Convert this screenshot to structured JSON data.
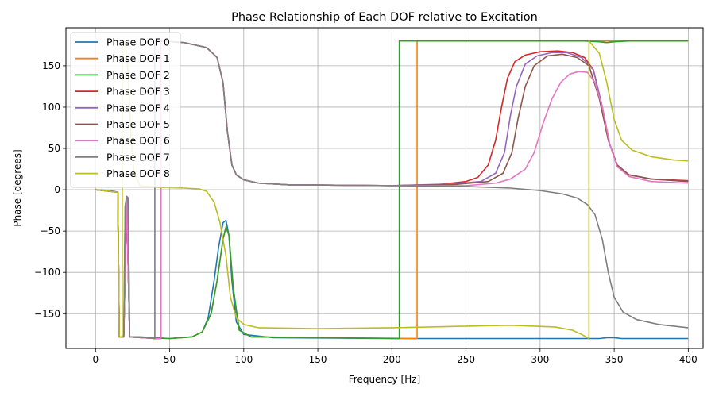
{
  "chart_data": {
    "type": "line",
    "title": "Phase Relationship of Each DOF relative to Excitation",
    "xlabel": "Frequency [Hz]",
    "ylabel": "Phase [degrees]",
    "xlim": [
      -20,
      410
    ],
    "ylim": [
      -192,
      196
    ],
    "xticks": [
      0,
      50,
      100,
      150,
      200,
      250,
      300,
      350,
      400
    ],
    "yticks": [
      -150,
      -100,
      -50,
      0,
      50,
      100,
      150
    ],
    "xtick_labels": [
      "0",
      "50",
      "100",
      "150",
      "200",
      "250",
      "300",
      "350",
      "400"
    ],
    "ytick_labels": [
      "−150",
      "−100",
      "−50",
      "0",
      "50",
      "100",
      "150"
    ],
    "grid": true,
    "legend_position": "top-left",
    "series": [
      {
        "name": "Phase DOF 0",
        "color": "#1f77b4",
        "points": [
          [
            0,
            0
          ],
          [
            10,
            -1
          ],
          [
            15,
            -3
          ],
          [
            16,
            -178
          ],
          [
            19,
            -178
          ],
          [
            20,
            -20
          ],
          [
            21,
            -8
          ],
          [
            22,
            -10
          ],
          [
            23,
            -178
          ],
          [
            30,
            -178
          ],
          [
            50,
            -180
          ],
          [
            65,
            -178
          ],
          [
            72,
            -172
          ],
          [
            76,
            -155
          ],
          [
            80,
            -110
          ],
          [
            83,
            -70
          ],
          [
            86,
            -40
          ],
          [
            88,
            -37
          ],
          [
            90,
            -55
          ],
          [
            92,
            -110
          ],
          [
            95,
            -160
          ],
          [
            100,
            -175
          ],
          [
            120,
            -179
          ],
          [
            200,
            -180
          ],
          [
            340,
            -180
          ],
          [
            345,
            -179
          ],
          [
            350,
            -179
          ],
          [
            355,
            -180
          ],
          [
            400,
            -180
          ]
        ]
      },
      {
        "name": "Phase DOF 1",
        "color": "#ff7f0e",
        "points": [
          [
            0,
            0
          ],
          [
            15,
            -3
          ],
          [
            16,
            -178
          ],
          [
            19,
            -178
          ],
          [
            21,
            -10
          ],
          [
            23,
            -178
          ],
          [
            50,
            -180
          ],
          [
            65,
            -178
          ],
          [
            72,
            -172
          ],
          [
            78,
            -150
          ],
          [
            82,
            -110
          ],
          [
            86,
            -60
          ],
          [
            88,
            -45
          ],
          [
            90,
            -55
          ],
          [
            93,
            -120
          ],
          [
            97,
            -170
          ],
          [
            105,
            -178
          ],
          [
            217,
            -180
          ],
          [
            217,
            180
          ],
          [
            400,
            180
          ]
        ]
      },
      {
        "name": "Phase DOF 2",
        "color": "#2ca02c",
        "points": [
          [
            0,
            0
          ],
          [
            15,
            -3
          ],
          [
            16,
            -178
          ],
          [
            19,
            -178
          ],
          [
            21,
            -10
          ],
          [
            23,
            -178
          ],
          [
            50,
            -180
          ],
          [
            65,
            -178
          ],
          [
            72,
            -172
          ],
          [
            78,
            -150
          ],
          [
            82,
            -110
          ],
          [
            86,
            -60
          ],
          [
            88,
            -45
          ],
          [
            90,
            -55
          ],
          [
            93,
            -120
          ],
          [
            97,
            -170
          ],
          [
            105,
            -178
          ],
          [
            205,
            -180
          ],
          [
            205,
            180
          ],
          [
            330,
            180
          ],
          [
            340,
            179
          ],
          [
            345,
            178
          ],
          [
            350,
            179
          ],
          [
            360,
            180
          ],
          [
            400,
            180
          ]
        ]
      },
      {
        "name": "Phase DOF 3",
        "color": "#d62728",
        "points": [
          [
            0,
            0
          ],
          [
            15,
            -3
          ],
          [
            16,
            -178
          ],
          [
            19,
            -178
          ],
          [
            21,
            -10
          ],
          [
            23,
            -178
          ],
          [
            40,
            -180
          ],
          [
            44,
            -180
          ],
          [
            44,
            180
          ],
          [
            60,
            178
          ],
          [
            75,
            172
          ],
          [
            82,
            160
          ],
          [
            86,
            130
          ],
          [
            89,
            70
          ],
          [
            92,
            30
          ],
          [
            95,
            18
          ],
          [
            100,
            12
          ],
          [
            110,
            8
          ],
          [
            130,
            6
          ],
          [
            200,
            5
          ],
          [
            230,
            6
          ],
          [
            250,
            10
          ],
          [
            258,
            15
          ],
          [
            265,
            30
          ],
          [
            270,
            60
          ],
          [
            274,
            100
          ],
          [
            278,
            135
          ],
          [
            283,
            155
          ],
          [
            290,
            163
          ],
          [
            300,
            167
          ],
          [
            312,
            168
          ],
          [
            322,
            166
          ],
          [
            330,
            160
          ],
          [
            336,
            145
          ],
          [
            342,
            100
          ],
          [
            347,
            55
          ],
          [
            352,
            30
          ],
          [
            360,
            18
          ],
          [
            375,
            13
          ],
          [
            400,
            11
          ]
        ]
      },
      {
        "name": "Phase DOF 4",
        "color": "#9467bd",
        "points": [
          [
            0,
            0
          ],
          [
            15,
            -3
          ],
          [
            16,
            -178
          ],
          [
            19,
            -178
          ],
          [
            21,
            -10
          ],
          [
            23,
            -178
          ],
          [
            40,
            -180
          ],
          [
            44,
            -180
          ],
          [
            44,
            180
          ],
          [
            60,
            178
          ],
          [
            75,
            172
          ],
          [
            82,
            160
          ],
          [
            86,
            130
          ],
          [
            89,
            70
          ],
          [
            92,
            30
          ],
          [
            95,
            18
          ],
          [
            100,
            12
          ],
          [
            110,
            8
          ],
          [
            130,
            6
          ],
          [
            200,
            5
          ],
          [
            240,
            7
          ],
          [
            260,
            10
          ],
          [
            270,
            20
          ],
          [
            276,
            45
          ],
          [
            280,
            90
          ],
          [
            284,
            125
          ],
          [
            290,
            152
          ],
          [
            298,
            162
          ],
          [
            308,
            166
          ],
          [
            318,
            166
          ],
          [
            328,
            160
          ],
          [
            336,
            145
          ],
          [
            342,
            100
          ],
          [
            347,
            55
          ],
          [
            352,
            30
          ],
          [
            360,
            18
          ],
          [
            375,
            13
          ],
          [
            400,
            10
          ]
        ]
      },
      {
        "name": "Phase DOF 5",
        "color": "#8c564b",
        "points": [
          [
            0,
            0
          ],
          [
            15,
            -3
          ],
          [
            16,
            -178
          ],
          [
            19,
            -178
          ],
          [
            21,
            -10
          ],
          [
            23,
            -178
          ],
          [
            40,
            -180
          ],
          [
            44,
            -180
          ],
          [
            44,
            180
          ],
          [
            60,
            178
          ],
          [
            75,
            172
          ],
          [
            82,
            160
          ],
          [
            86,
            130
          ],
          [
            89,
            70
          ],
          [
            92,
            30
          ],
          [
            95,
            18
          ],
          [
            100,
            12
          ],
          [
            110,
            8
          ],
          [
            130,
            6
          ],
          [
            200,
            5
          ],
          [
            240,
            6
          ],
          [
            265,
            10
          ],
          [
            275,
            20
          ],
          [
            281,
            45
          ],
          [
            285,
            85
          ],
          [
            290,
            125
          ],
          [
            296,
            150
          ],
          [
            305,
            162
          ],
          [
            315,
            164
          ],
          [
            325,
            160
          ],
          [
            333,
            150
          ],
          [
            340,
            110
          ],
          [
            346,
            60
          ],
          [
            352,
            30
          ],
          [
            360,
            18
          ],
          [
            375,
            13
          ],
          [
            400,
            10
          ]
        ]
      },
      {
        "name": "Phase DOF 6",
        "color": "#e377c2",
        "points": [
          [
            0,
            0
          ],
          [
            15,
            -3
          ],
          [
            16,
            -178
          ],
          [
            19,
            -178
          ],
          [
            21,
            -10
          ],
          [
            23,
            -178
          ],
          [
            40,
            -180
          ],
          [
            44,
            -180
          ],
          [
            44,
            180
          ],
          [
            60,
            178
          ],
          [
            75,
            172
          ],
          [
            82,
            160
          ],
          [
            86,
            130
          ],
          [
            89,
            70
          ],
          [
            92,
            30
          ],
          [
            95,
            18
          ],
          [
            100,
            12
          ],
          [
            110,
            8
          ],
          [
            130,
            6
          ],
          [
            200,
            5
          ],
          [
            250,
            5
          ],
          [
            270,
            8
          ],
          [
            280,
            13
          ],
          [
            290,
            25
          ],
          [
            296,
            45
          ],
          [
            302,
            80
          ],
          [
            308,
            110
          ],
          [
            314,
            130
          ],
          [
            320,
            140
          ],
          [
            326,
            143
          ],
          [
            332,
            142
          ],
          [
            337,
            130
          ],
          [
            342,
            100
          ],
          [
            347,
            55
          ],
          [
            352,
            28
          ],
          [
            360,
            16
          ],
          [
            375,
            10
          ],
          [
            400,
            8
          ]
        ]
      },
      {
        "name": "Phase DOF 7",
        "color": "#7f7f7f",
        "points": [
          [
            0,
            0
          ],
          [
            15,
            -3
          ],
          [
            16,
            -178
          ],
          [
            19,
            -178
          ],
          [
            20,
            -20
          ],
          [
            21,
            -8
          ],
          [
            22,
            -10
          ],
          [
            23,
            -178
          ],
          [
            35,
            -179
          ],
          [
            40,
            -180
          ],
          [
            40,
            180
          ],
          [
            60,
            178
          ],
          [
            75,
            172
          ],
          [
            82,
            160
          ],
          [
            86,
            130
          ],
          [
            89,
            70
          ],
          [
            92,
            30
          ],
          [
            95,
            18
          ],
          [
            100,
            12
          ],
          [
            110,
            8
          ],
          [
            130,
            6
          ],
          [
            200,
            5
          ],
          [
            250,
            4
          ],
          [
            280,
            2
          ],
          [
            300,
            -1
          ],
          [
            315,
            -5
          ],
          [
            325,
            -10
          ],
          [
            332,
            -18
          ],
          [
            337,
            -30
          ],
          [
            342,
            -60
          ],
          [
            346,
            -100
          ],
          [
            350,
            -130
          ],
          [
            356,
            -148
          ],
          [
            365,
            -157
          ],
          [
            380,
            -163
          ],
          [
            400,
            -167
          ]
        ]
      },
      {
        "name": "Phase DOF 8",
        "color": "#bcbd22",
        "points": [
          [
            0,
            0
          ],
          [
            15,
            -3
          ],
          [
            16,
            -178
          ],
          [
            18,
            -178
          ],
          [
            18,
            180
          ],
          [
            20,
            178
          ],
          [
            22,
            140
          ],
          [
            24,
            60
          ],
          [
            26,
            20
          ],
          [
            30,
            5
          ],
          [
            40,
            3
          ],
          [
            60,
            2
          ],
          [
            70,
            1
          ],
          [
            75,
            -2
          ],
          [
            80,
            -15
          ],
          [
            84,
            -40
          ],
          [
            88,
            -80
          ],
          [
            91,
            -130
          ],
          [
            95,
            -155
          ],
          [
            100,
            -163
          ],
          [
            110,
            -167
          ],
          [
            150,
            -168
          ],
          [
            200,
            -167
          ],
          [
            250,
            -165
          ],
          [
            280,
            -164
          ],
          [
            310,
            -166
          ],
          [
            322,
            -170
          ],
          [
            328,
            -175
          ],
          [
            333,
            -180
          ],
          [
            333,
            180
          ],
          [
            340,
            165
          ],
          [
            345,
            130
          ],
          [
            350,
            85
          ],
          [
            355,
            60
          ],
          [
            362,
            48
          ],
          [
            375,
            40
          ],
          [
            390,
            36
          ],
          [
            400,
            35
          ]
        ]
      }
    ]
  }
}
